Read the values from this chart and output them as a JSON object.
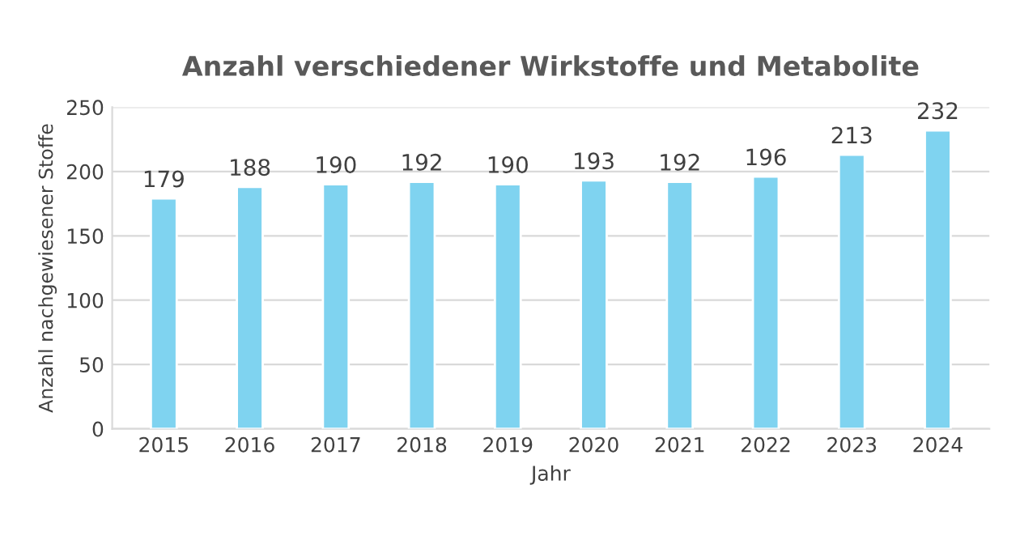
{
  "chart_data": {
    "type": "bar",
    "title": "Anzahl verschiedener Wirkstoffe und Metabolite",
    "xlabel": "Jahr",
    "ylabel": "Anzahl nachgewiesener Stoffe",
    "categories": [
      "2015",
      "2016",
      "2017",
      "2018",
      "2019",
      "2020",
      "2021",
      "2022",
      "2023",
      "2024"
    ],
    "values": [
      179,
      188,
      190,
      192,
      190,
      193,
      192,
      196,
      213,
      232
    ],
    "color": "#7fd3f0",
    "ylim": [
      0,
      250
    ],
    "yticks": [
      0,
      50,
      100,
      150,
      200,
      250
    ],
    "grid": "y",
    "data_labels": true
  }
}
